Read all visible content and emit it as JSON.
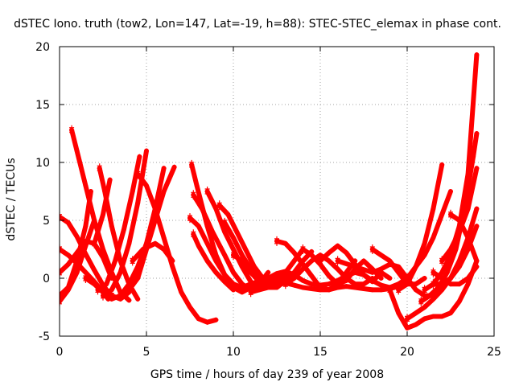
{
  "chart_data": {
    "type": "scatter",
    "title": "dSTEC Iono. truth (tow2, Lon=147, Lat=-19, h=88): STEC-STEC_elemax in phase cont.",
    "xlabel": "GPS time / hours of day 239 of year 2008",
    "ylabel": "dSTEC  / TECUs",
    "xlim": [
      0,
      25
    ],
    "ylim": [
      -5,
      20
    ],
    "xticks": [
      0,
      5,
      10,
      15,
      20,
      25
    ],
    "yticks": [
      -5,
      0,
      5,
      10,
      15,
      20
    ],
    "xtick_labels": [
      "0",
      "5",
      "10",
      "15",
      "20",
      "25"
    ],
    "ytick_labels": [
      "-5",
      "0",
      "5",
      "10",
      "15",
      "20"
    ],
    "grid": true,
    "marker": "plus",
    "color": "#ff0000",
    "series": [
      {
        "x": [
          0.7,
          1.0,
          1.5,
          2.0,
          2.5,
          3.0,
          3.5,
          4.0
        ],
        "y": [
          12.8,
          11.0,
          8.0,
          5.0,
          2.5,
          0.5,
          -1.2,
          -1.9
        ]
      },
      {
        "x": [
          0.0,
          0.5,
          1.0,
          1.5,
          2.0,
          2.5,
          3.0
        ],
        "y": [
          5.3,
          4.8,
          3.6,
          2.1,
          0.7,
          -0.6,
          -1.6
        ]
      },
      {
        "x": [
          0.0,
          0.5,
          1.0,
          1.5,
          2.0,
          2.5,
          2.8
        ],
        "y": [
          2.5,
          2.0,
          1.3,
          0.5,
          -0.3,
          -1.2,
          -1.8
        ]
      },
      {
        "x": [
          0.0,
          0.5,
          1.0,
          1.5,
          2.0
        ],
        "y": [
          -2.0,
          -1.0,
          0.5,
          2.8,
          5.0
        ]
      },
      {
        "x": [
          0.0,
          0.5,
          1.0,
          1.5,
          1.8
        ],
        "y": [
          -1.5,
          -0.8,
          1.5,
          4.5,
          7.5
        ]
      },
      {
        "x": [
          0.0,
          0.5,
          1.0,
          1.5,
          2.0,
          2.5,
          3.0
        ],
        "y": [
          0.5,
          1.2,
          2.2,
          3.2,
          3.0,
          1.8,
          0.0
        ]
      },
      {
        "x": [
          2.3,
          2.6,
          3.0,
          3.5,
          4.0,
          4.5
        ],
        "y": [
          9.5,
          7.5,
          4.5,
          1.5,
          -0.5,
          -1.8
        ]
      },
      {
        "x": [
          1.5,
          2.0,
          2.5,
          3.0,
          3.5,
          4.0,
          4.5,
          5.0
        ],
        "y": [
          0.0,
          -0.5,
          -1.2,
          -1.8,
          -1.5,
          -0.5,
          1.0,
          3.0
        ]
      },
      {
        "x": [
          2.5,
          3.0,
          3.5,
          4.0,
          4.5,
          5.0
        ],
        "y": [
          -1.5,
          -1.0,
          0.5,
          3.0,
          6.5,
          11.0
        ]
      },
      {
        "x": [
          2.2,
          2.7,
          3.2,
          3.7,
          4.2,
          4.6
        ],
        "y": [
          -1.0,
          -0.5,
          1.5,
          4.2,
          7.5,
          10.5
        ]
      },
      {
        "x": [
          2.0,
          2.5,
          2.9
        ],
        "y": [
          3.0,
          5.5,
          8.5
        ]
      },
      {
        "x": [
          3.0,
          3.5,
          4.0,
          4.5,
          5.0,
          5.5,
          6.0
        ],
        "y": [
          -1.5,
          -1.8,
          -1.2,
          0.5,
          3.0,
          6.0,
          9.5
        ]
      },
      {
        "x": [
          3.5,
          4.0,
          4.5,
          5.0,
          5.5,
          6.0,
          6.6
        ],
        "y": [
          -1.5,
          -1.0,
          0.0,
          2.5,
          5.0,
          7.5,
          9.6
        ]
      },
      {
        "x": [
          4.5,
          5.0,
          5.5,
          6.0,
          6.5,
          7.0,
          7.5,
          8.0,
          8.5,
          9.0
        ],
        "y": [
          9.0,
          8.0,
          6.0,
          3.5,
          1.0,
          -1.2,
          -2.5,
          -3.5,
          -3.8,
          -3.6
        ]
      },
      {
        "x": [
          4.2,
          4.8,
          5.5,
          6.0,
          6.5
        ],
        "y": [
          1.5,
          2.5,
          3.0,
          2.5,
          1.5
        ]
      },
      {
        "x": [
          7.6,
          7.9,
          8.5,
          9.0,
          9.5,
          10.0,
          10.5,
          11.0,
          11.5
        ],
        "y": [
          9.8,
          8.0,
          4.5,
          2.0,
          0.3,
          -0.8,
          -1.2,
          -0.8,
          0.0
        ]
      },
      {
        "x": [
          7.7,
          8.2,
          8.8,
          9.5,
          10.0,
          10.5,
          11.0,
          11.5,
          12.0
        ],
        "y": [
          7.2,
          6.0,
          4.0,
          2.0,
          0.5,
          -0.5,
          -1.0,
          -0.5,
          0.5
        ]
      },
      {
        "x": [
          7.5,
          8.0,
          8.5,
          9.0,
          9.5,
          10.0,
          10.5,
          11.0
        ],
        "y": [
          5.2,
          4.5,
          3.0,
          1.5,
          0.3,
          -0.5,
          -0.8,
          -0.5
        ]
      },
      {
        "x": [
          7.7,
          8.0,
          8.5,
          9.0,
          9.5,
          10.0
        ],
        "y": [
          3.8,
          2.8,
          1.5,
          0.5,
          -0.3,
          -1.0
        ]
      },
      {
        "x": [
          8.5,
          9.0,
          9.5,
          10.0,
          10.5,
          11.0,
          11.5,
          12.0,
          12.5
        ],
        "y": [
          7.5,
          6.0,
          4.0,
          2.5,
          1.0,
          -0.3,
          -0.8,
          -0.5,
          0.2
        ]
      },
      {
        "x": [
          9.2,
          9.7,
          10.2,
          10.7,
          11.2,
          11.7,
          12.2,
          12.7,
          13.2
        ],
        "y": [
          6.3,
          5.5,
          4.0,
          2.5,
          1.0,
          0.0,
          -0.5,
          -0.3,
          0.3
        ]
      },
      {
        "x": [
          9.5,
          10.0,
          10.5,
          11.0,
          11.5,
          12.0,
          12.5,
          13.0,
          13.5,
          14.0
        ],
        "y": [
          4.8,
          3.5,
          2.0,
          0.8,
          0.0,
          -0.5,
          -0.2,
          0.5,
          1.5,
          2.5
        ]
      },
      {
        "x": [
          10.0,
          10.5,
          11.0,
          11.5,
          12.0,
          12.5,
          13.0,
          13.5,
          14.0,
          14.5
        ],
        "y": [
          2.0,
          1.5,
          0.5,
          -0.3,
          -0.8,
          -0.8,
          -0.2,
          0.5,
          1.5,
          2.3
        ]
      },
      {
        "x": [
          12.5,
          13.0,
          13.5,
          14.0,
          14.5,
          15.0,
          15.5,
          16.0,
          16.5,
          17.0
        ],
        "y": [
          3.2,
          3.0,
          2.2,
          1.2,
          0.2,
          -0.8,
          -1.0,
          -0.5,
          0.5,
          1.5
        ]
      },
      {
        "x": [
          11.0,
          11.5,
          12.0,
          12.5,
          13.0,
          13.5,
          14.0,
          14.5,
          15.0,
          15.5,
          16.0,
          16.5,
          17.0,
          17.5,
          18.0,
          18.5,
          19.0,
          19.5,
          20.0
        ],
        "y": [
          -0.5,
          -0.3,
          0.0,
          0.4,
          0.6,
          0.3,
          -0.2,
          -0.5,
          -0.6,
          -0.5,
          -0.2,
          0.2,
          0.5,
          0.3,
          -0.2,
          -0.6,
          -0.8,
          -0.5,
          0.0
        ]
      },
      {
        "x": [
          11.0,
          11.5,
          12.0,
          12.5,
          13.0,
          13.5,
          14.0,
          14.5,
          15.0,
          15.5,
          16.0,
          16.5,
          17.0,
          17.5,
          18.0,
          18.5,
          19.0,
          19.5,
          20.0
        ],
        "y": [
          -1.2,
          -1.0,
          -0.8,
          -0.6,
          -0.4,
          -0.6,
          -0.8,
          -0.9,
          -1.0,
          -1.0,
          -0.8,
          -0.7,
          -0.8,
          -0.9,
          -1.0,
          -1.0,
          -0.9,
          -0.7,
          -0.5
        ]
      },
      {
        "x": [
          13.0,
          13.5,
          14.0,
          14.5,
          15.0,
          15.5,
          16.0,
          16.5,
          17.0,
          17.5,
          18.0
        ],
        "y": [
          -0.5,
          0.0,
          0.8,
          1.5,
          2.0,
          1.5,
          0.8,
          0.0,
          -0.5,
          -0.5,
          0.0
        ]
      },
      {
        "x": [
          14.0,
          14.5,
          15.0,
          15.5,
          16.0,
          16.5,
          17.0,
          17.5,
          18.0,
          18.5
        ],
        "y": [
          2.5,
          2.0,
          1.2,
          0.2,
          -0.5,
          -0.2,
          0.8,
          1.5,
          0.8,
          0.0
        ]
      },
      {
        "x": [
          15.0,
          15.5,
          16.0,
          16.5,
          17.0,
          17.5,
          18.0,
          18.5,
          19.0
        ],
        "y": [
          1.5,
          2.2,
          2.8,
          2.2,
          1.2,
          0.3,
          -0.3,
          0.5,
          0.0
        ]
      },
      {
        "x": [
          18.0,
          18.5,
          19.0,
          19.5,
          20.0,
          20.5,
          21.0
        ],
        "y": [
          2.5,
          2.0,
          1.5,
          0.5,
          -0.5,
          -0.5,
          0.0
        ]
      },
      {
        "x": [
          16.0,
          17.0,
          18.0,
          18.5,
          19.0,
          19.5,
          20.0,
          20.5,
          21.0,
          21.5,
          22.0
        ],
        "y": [
          1.5,
          1.0,
          0.5,
          0.8,
          1.2,
          1.0,
          0.0,
          -1.0,
          -1.5,
          -1.5,
          -1.0
        ]
      },
      {
        "x": [
          19.5,
          20.0,
          20.5,
          21.0,
          21.5,
          22.0
        ],
        "y": [
          -1.0,
          -0.5,
          1.0,
          3.0,
          6.0,
          9.8
        ]
      },
      {
        "x": [
          19.0,
          19.5,
          20.0,
          20.5,
          21.0,
          21.5,
          22.0,
          22.5,
          23.0,
          23.5,
          24.0
        ],
        "y": [
          -1.0,
          -3.0,
          -4.3,
          -4.0,
          -3.5,
          -3.3,
          -3.3,
          -3.0,
          -2.0,
          -0.5,
          1.5
        ]
      },
      {
        "x": [
          20.0,
          20.5,
          21.0,
          21.5,
          22.0,
          22.5,
          23.0,
          23.5,
          24.0
        ],
        "y": [
          -3.5,
          -3.0,
          -2.5,
          -1.8,
          -1.0,
          0.0,
          1.5,
          3.5,
          6.0
        ]
      },
      {
        "x": [
          20.0,
          20.5,
          21.0,
          21.5,
          22.0,
          22.5
        ],
        "y": [
          0.0,
          1.0,
          2.0,
          3.5,
          5.5,
          7.5
        ]
      },
      {
        "x": [
          21.0,
          21.5,
          22.0,
          22.5,
          23.0,
          23.5,
          24.0
        ],
        "y": [
          -1.0,
          -0.5,
          0.5,
          2.0,
          4.5,
          9.0,
          19.3
        ]
      },
      {
        "x": [
          20.8,
          21.3,
          21.8,
          22.3,
          22.8,
          23.3,
          23.8,
          24.0
        ],
        "y": [
          -2.0,
          -1.5,
          -0.8,
          0.5,
          2.5,
          6.0,
          10.5,
          12.5
        ]
      },
      {
        "x": [
          21.5,
          22.0,
          22.5,
          23.0,
          23.5,
          24.0
        ],
        "y": [
          -0.5,
          -0.5,
          0.0,
          1.0,
          2.5,
          4.5
        ]
      },
      {
        "x": [
          22.0,
          22.5,
          23.0,
          23.5,
          24.0
        ],
        "y": [
          1.5,
          2.5,
          4.0,
          6.0,
          9.5
        ]
      },
      {
        "x": [
          22.5,
          23.0,
          23.5,
          24.0
        ],
        "y": [
          5.5,
          5.0,
          3.5,
          1.5
        ]
      },
      {
        "x": [
          21.5,
          22.0,
          22.5,
          23.0,
          23.5,
          24.0
        ],
        "y": [
          0.5,
          0.0,
          -0.5,
          -0.5,
          0.0,
          1.0
        ]
      }
    ]
  }
}
